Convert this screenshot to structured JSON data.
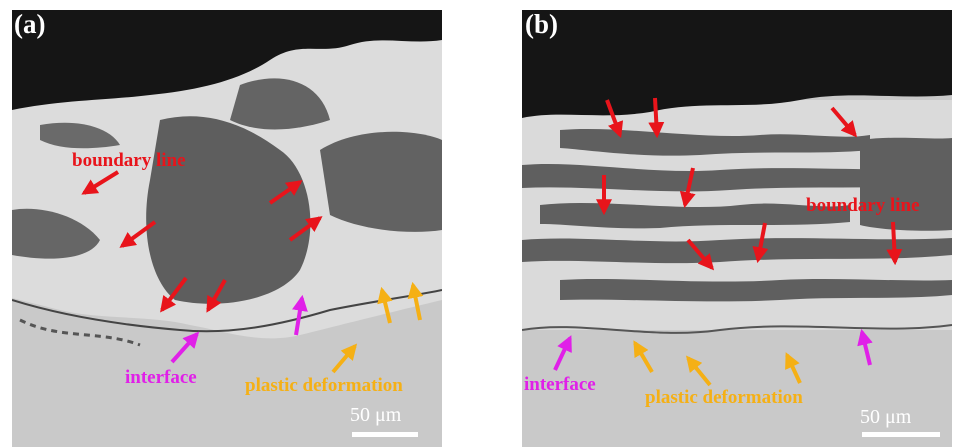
{
  "panels": [
    {
      "label": "(a)",
      "boundary": "boundary line",
      "interface": "interface",
      "deformation": "plastic deformation",
      "scale": "50 μm"
    },
    {
      "label": "(b)",
      "boundary": "boundary line",
      "interface": "interface",
      "deformation": "plastic deformation",
      "scale": "50 μm"
    }
  ]
}
